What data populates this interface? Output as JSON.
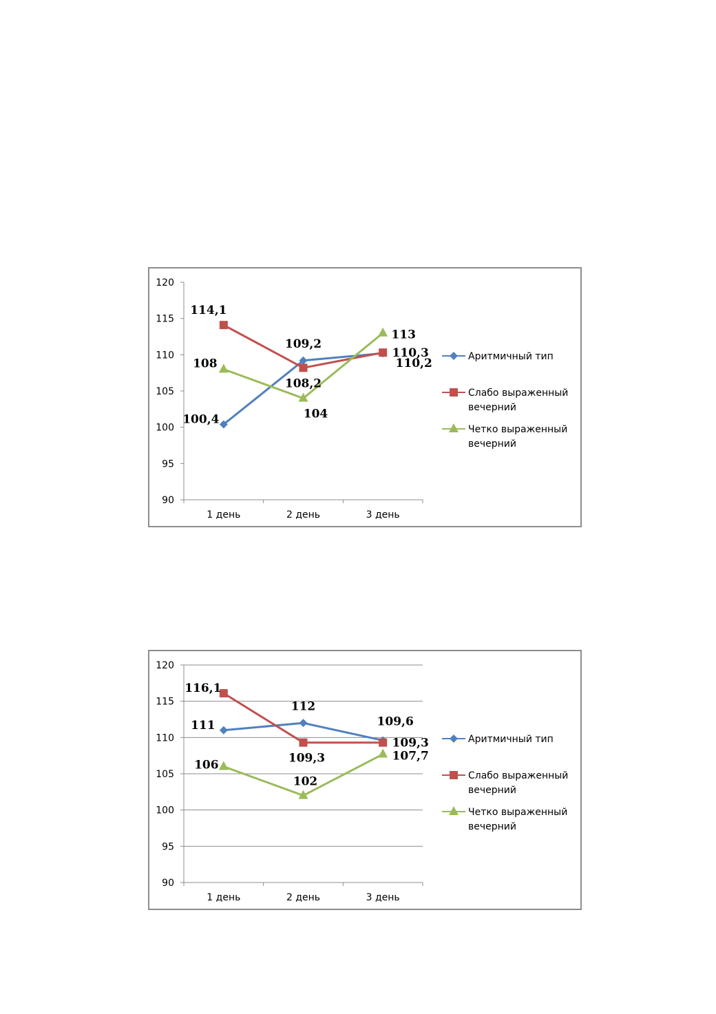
{
  "chart_data": [
    {
      "type": "line",
      "categories": [
        "1 день",
        "2 день",
        "3 день"
      ],
      "ylim": [
        90,
        120
      ],
      "yticks": [
        "90",
        "95",
        "100",
        "105",
        "110",
        "115",
        "120"
      ],
      "grid": false,
      "legend_position": "right",
      "series": [
        {
          "name": "Аритмичный тип",
          "marker": "diamond",
          "color": "#4f81bd",
          "values": [
            100.4,
            109.2,
            110.2
          ],
          "labels": [
            "100,4",
            "109,2",
            "110,2"
          ]
        },
        {
          "name": "Слабо выраженный вечерний",
          "marker": "square",
          "color": "#c0504d",
          "values": [
            114.1,
            108.2,
            110.3
          ],
          "labels": [
            "114,1",
            "108,2",
            "110,3"
          ]
        },
        {
          "name": "Четко выраженный вечерний",
          "marker": "triangle",
          "color": "#9bbb59",
          "values": [
            108,
            104,
            113
          ],
          "labels": [
            "108",
            "104",
            "113"
          ]
        }
      ]
    },
    {
      "type": "line",
      "categories": [
        "1 день",
        "2 день",
        "3 день"
      ],
      "ylim": [
        90,
        120
      ],
      "yticks": [
        "90",
        "95",
        "100",
        "105",
        "110",
        "115",
        "120"
      ],
      "grid": true,
      "legend_position": "right",
      "series": [
        {
          "name": "Аритмичный тип",
          "marker": "diamond",
          "color": "#4f81bd",
          "values": [
            111,
            112,
            109.6
          ],
          "labels": [
            "111",
            "112",
            "109,6"
          ]
        },
        {
          "name": "Слабо выраженный вечерний",
          "marker": "square",
          "color": "#c0504d",
          "values": [
            116.1,
            109.3,
            109.3
          ],
          "labels": [
            "116,1",
            "109,3",
            "109,3"
          ]
        },
        {
          "name": "Четко выраженный вечерний",
          "marker": "triangle",
          "color": "#9bbb59",
          "values": [
            106,
            102,
            107.7
          ],
          "labels": [
            "106",
            "102",
            "107,7"
          ]
        }
      ]
    }
  ]
}
